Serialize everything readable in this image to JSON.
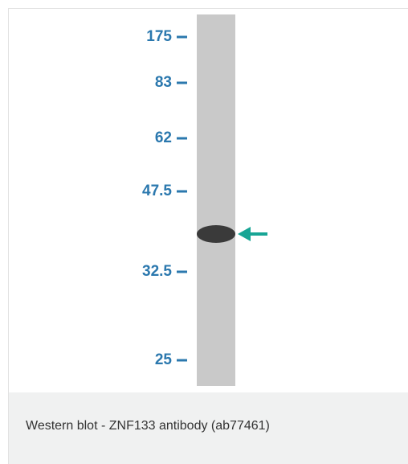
{
  "blot": {
    "markers": [
      "175",
      "83",
      "62",
      "47.5",
      "32.5",
      "25"
    ]
  },
  "caption": "Western blot - ZNF133 antibody (ab77461)"
}
